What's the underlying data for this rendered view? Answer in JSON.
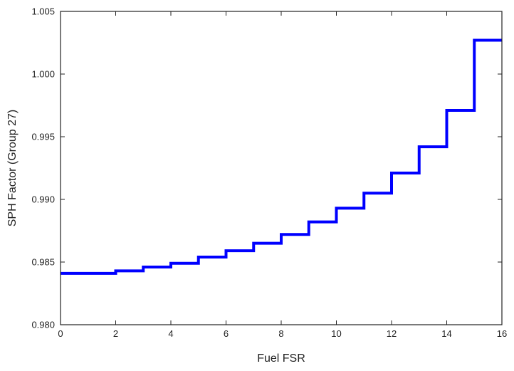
{
  "chart_data": {
    "type": "line",
    "step": "post",
    "xlabel": "Fuel FSR",
    "ylabel": "SPH Factor (Group 27)",
    "xlim": [
      0,
      16
    ],
    "ylim": [
      0.98,
      1.005
    ],
    "xticks": [
      0,
      2,
      4,
      6,
      8,
      10,
      12,
      14,
      16
    ],
    "xtick_labels": [
      "0",
      "2",
      "4",
      "6",
      "8",
      "10",
      "12",
      "14",
      "16"
    ],
    "yticks": [
      0.98,
      0.985,
      0.99,
      0.995,
      1.0,
      1.005
    ],
    "ytick_labels": [
      "0.980",
      "0.985",
      "0.990",
      "0.995",
      "1.000",
      "1.005"
    ],
    "grid": false,
    "series": [
      {
        "color": "#0000ff",
        "x": [
          0,
          1,
          2,
          3,
          4,
          5,
          6,
          7,
          8,
          9,
          10,
          11,
          12,
          13,
          14,
          15,
          16
        ],
        "y": [
          0.9841,
          0.9841,
          0.9843,
          0.9846,
          0.9849,
          0.9854,
          0.9859,
          0.9865,
          0.9872,
          0.9882,
          0.9893,
          0.9905,
          0.9921,
          0.9942,
          0.9971,
          1.0027,
          1.0027
        ]
      }
    ]
  }
}
